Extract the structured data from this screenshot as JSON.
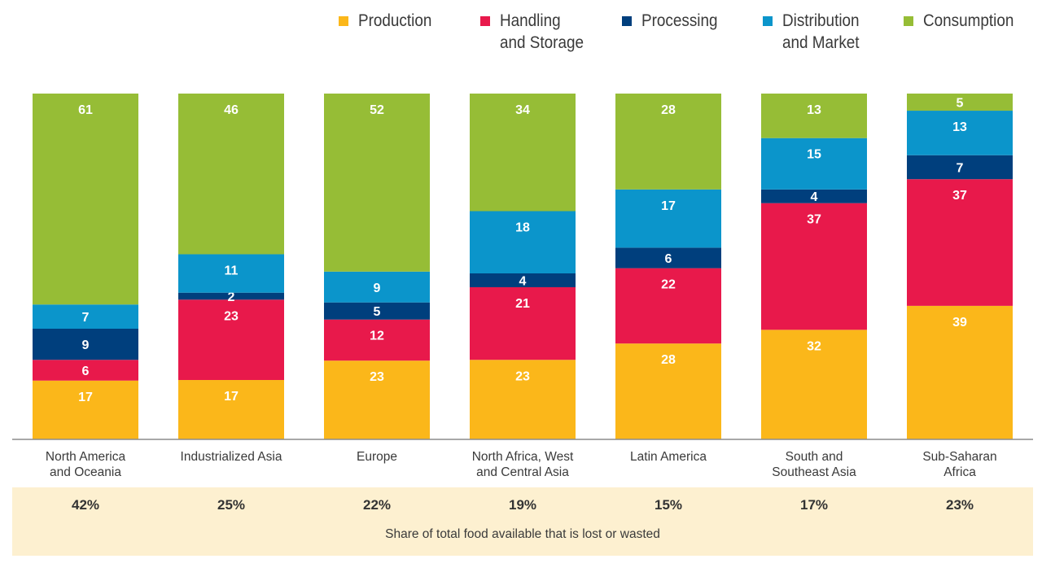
{
  "legend": [
    {
      "label": "Production",
      "color": "#fbb71a"
    },
    {
      "label": "Handling\nand Storage",
      "color": "#e8194b"
    },
    {
      "label": "Processing",
      "color": "#003f7d"
    },
    {
      "label": "Distribution\nand Market",
      "color": "#0b95cb"
    },
    {
      "label": "Consumption",
      "color": "#96bd36"
    }
  ],
  "chart_data": {
    "type": "bar",
    "stacked": true,
    "categories": [
      "North America\nand Oceania",
      "Industrialized Asia",
      "Europe",
      "North Africa, West\nand Central Asia",
      "Latin America",
      "South and\nSoutheast Asia",
      "Sub-Saharan\nAfrica"
    ],
    "series": [
      {
        "name": "Production",
        "color": "#fbb71a",
        "values": [
          17,
          17,
          23,
          23,
          28,
          32,
          39
        ]
      },
      {
        "name": "Handling and Storage",
        "color": "#e8194b",
        "values": [
          6,
          23,
          12,
          21,
          22,
          37,
          37
        ]
      },
      {
        "name": "Processing",
        "color": "#003f7d",
        "values": [
          9,
          2,
          5,
          4,
          6,
          4,
          7
        ]
      },
      {
        "name": "Distribution and Market",
        "color": "#0b95cb",
        "values": [
          7,
          11,
          9,
          18,
          17,
          15,
          13
        ]
      },
      {
        "name": "Consumption",
        "color": "#96bd36",
        "values": [
          61,
          46,
          52,
          34,
          28,
          13,
          5
        ]
      }
    ],
    "ylim": [
      0,
      100
    ],
    "grid": false,
    "legend_position": "top",
    "title": "",
    "xlabel": "",
    "ylabel": ""
  },
  "share": {
    "values": [
      "42%",
      "25%",
      "22%",
      "19%",
      "15%",
      "17%",
      "23%"
    ],
    "caption": "Share of total food available that is lost or wasted"
  }
}
